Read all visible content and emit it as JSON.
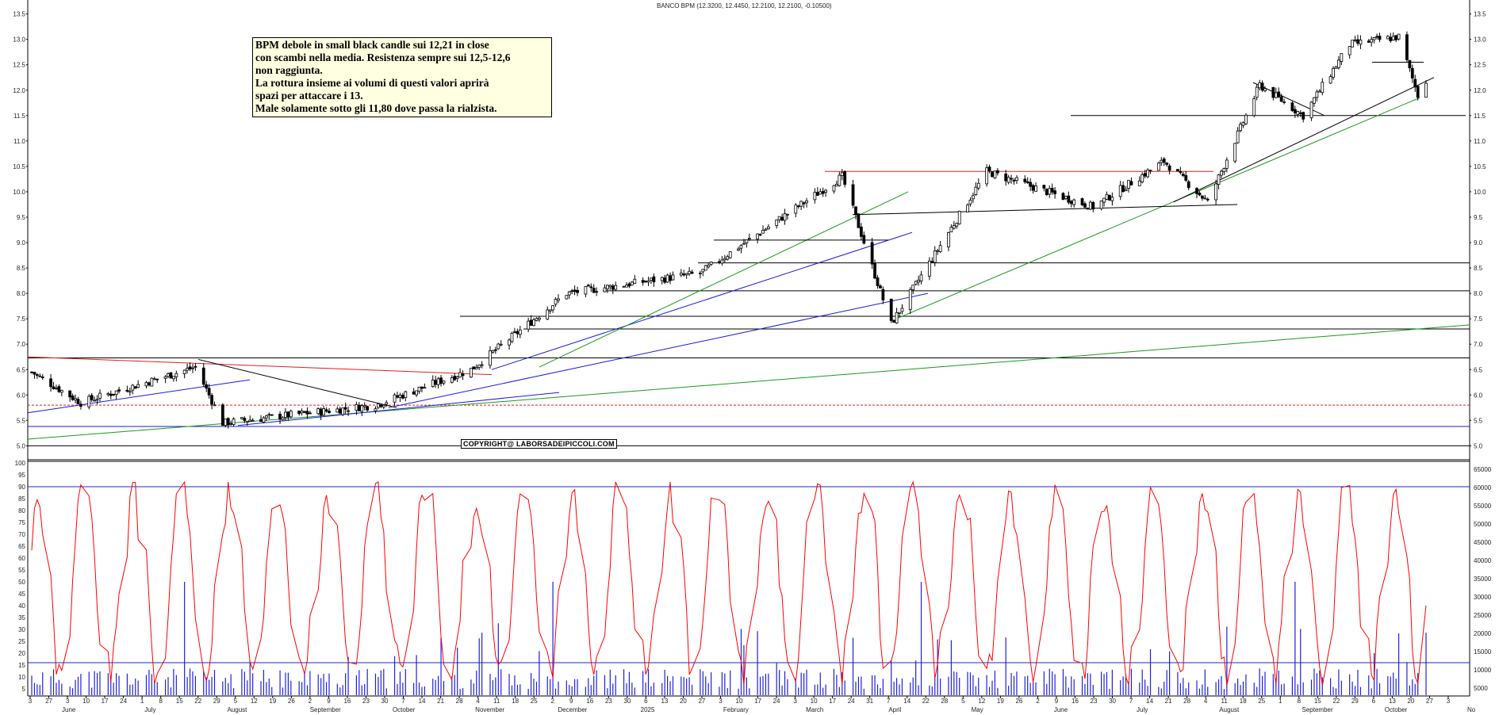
{
  "title": "BANCO BPM (12.3200, 12.4450, 12.2100, 12.2100, -0.10500)",
  "comment": {
    "lines": [
      "BPM debole in small black candle sui 12,21 in close",
      "con scambi nella media. Resistenza sempre sui 12,5-12,6",
      "non raggiunta.",
      "La rottura insieme ai volumi di questi valori aprirà",
      "spazi per attaccare i 13.",
      "Male solamente sotto gli 11,80 dove passa la rialzista."
    ]
  },
  "copyright": "COPYRIGHT@ LABORSADEIPICCOLI.COM",
  "colors": {
    "candle": "#000000",
    "trend_red": "#e02020",
    "trend_blue": "#1a1ae0",
    "trend_green": "#1a9a1a",
    "trend_black": "#000000",
    "oscillator": "#ff0000",
    "volume": "#2020e0",
    "reference": "#2020e0"
  },
  "chart_data": [
    {
      "type": "candlestick",
      "name": "price",
      "ylim": [
        4.85,
        13.65
      ],
      "y_ticks": [
        "5.0",
        "5.5",
        "6.0",
        "6.5",
        "7.0",
        "7.5",
        "8.0",
        "8.5",
        "9.0",
        "9.5",
        "10.0",
        "10.5",
        "11.0",
        "11.5",
        "12.0",
        "12.5",
        "13.0",
        "13.5"
      ],
      "last_close": 12.21,
      "key_points": [
        {
          "date": "2024-05-27",
          "close": 6.45
        },
        {
          "date": "2024-06-14",
          "close": 5.85
        },
        {
          "date": "2024-07-26",
          "close": 6.55
        },
        {
          "date": "2024-08-05",
          "close": 5.45
        },
        {
          "date": "2024-09-30",
          "close": 5.8
        },
        {
          "date": "2024-11-04",
          "close": 6.5
        },
        {
          "date": "2024-12-09",
          "close": 8.0
        },
        {
          "date": "2025-01-27",
          "close": 8.4
        },
        {
          "date": "2025-03-20",
          "close": 10.3
        },
        {
          "date": "2025-04-07",
          "close": 7.4
        },
        {
          "date": "2025-05-12",
          "close": 10.4
        },
        {
          "date": "2025-06-20",
          "close": 9.7
        },
        {
          "date": "2025-07-16",
          "close": 10.6
        },
        {
          "date": "2025-08-01",
          "close": 9.8
        },
        {
          "date": "2025-08-20",
          "close": 12.1
        },
        {
          "date": "2025-09-05",
          "close": 11.5
        },
        {
          "date": "2025-09-22",
          "close": 12.9
        },
        {
          "date": "2025-10-10",
          "close": 13.05
        },
        {
          "date": "2025-10-17",
          "close": 11.9
        },
        {
          "date": "2025-10-20",
          "close": 12.21
        }
      ],
      "horizontal_levels": [
        5.0,
        5.38,
        5.8,
        6.73,
        7.3,
        7.55,
        8.05,
        8.6,
        11.5
      ]
    },
    {
      "type": "line+bar",
      "name": "oscillator_and_volume",
      "oscillator_ylim": [
        2,
        100
      ],
      "oscillator_ticks": [
        "5",
        "10",
        "15",
        "20",
        "25",
        "30",
        "35",
        "40",
        "45",
        "50",
        "55",
        "60",
        "65",
        "70",
        "75",
        "80",
        "85",
        "90",
        "95",
        "100"
      ],
      "volume_ticks": [
        "5000",
        "10000",
        "15000",
        "20000",
        "25000",
        "30000",
        "35000",
        "40000",
        "45000",
        "50000",
        "55000",
        "60000",
        "65000"
      ],
      "oscillator_reference_lines": [
        90,
        16
      ],
      "oscillator_last": 40
    }
  ],
  "x_axis": {
    "day_labels": [
      "3",
      "27",
      "3",
      "10",
      "17",
      "24",
      "1",
      "8",
      "15",
      "22",
      "29",
      "5",
      "12",
      "19",
      "26",
      "2",
      "9",
      "16",
      "23",
      "30",
      "7",
      "14",
      "21",
      "28",
      "4",
      "11",
      "18",
      "25",
      "2",
      "9",
      "16",
      "23",
      "30",
      "6",
      "13",
      "20",
      "27",
      "3",
      "10",
      "17",
      "24",
      "3",
      "10",
      "17",
      "24",
      "31",
      "7",
      "14",
      "22",
      "28",
      "5",
      "12",
      "19",
      "26",
      "2",
      "9",
      "16",
      "23",
      "30",
      "7",
      "14",
      "21",
      "28",
      "4",
      "11",
      "18",
      "25",
      "1",
      "8",
      "15",
      "22",
      "29",
      "6",
      "13",
      "20",
      "27",
      "3"
    ],
    "month_labels": [
      "June",
      "July",
      "August",
      "September",
      "October",
      "November",
      "December",
      "2025",
      "February",
      "March",
      "April",
      "May",
      "June",
      "July",
      "August",
      "September",
      "October",
      "No"
    ]
  }
}
